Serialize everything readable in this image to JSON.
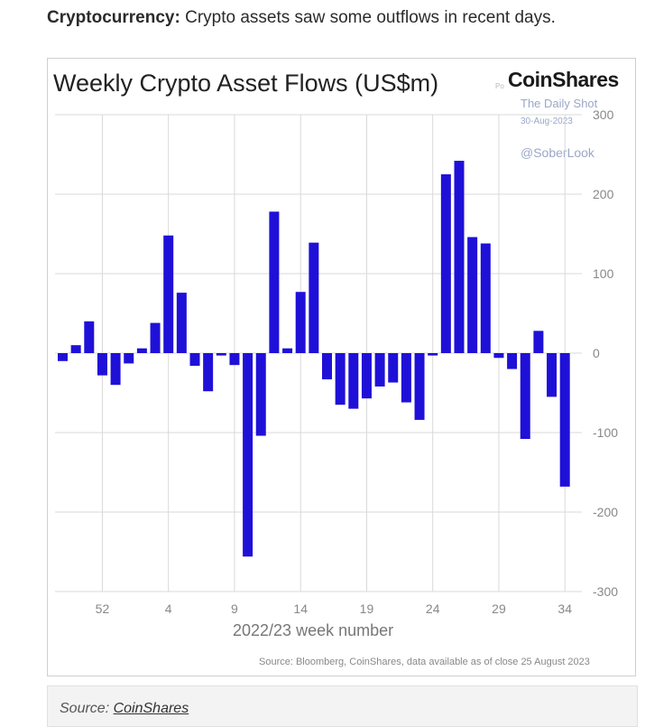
{
  "intro": {
    "bold": "Cryptocurrency:",
    "text": " Crypto assets saw some outflows in recent days."
  },
  "chart": {
    "title": "Weekly Crypto Asset Flows (US$m)",
    "brand": "CoinShares",
    "brand_prefix": "Po",
    "watermark": {
      "line1": "The Daily Shot",
      "line2": "30-Aug-2023",
      "line3": "@SoberLook"
    },
    "source_note": "Source: Bloomberg, CoinShares, data available as of close 25 August 2023"
  },
  "chart_data": {
    "type": "bar",
    "title": "Weekly Crypto Asset Flows (US$m)",
    "xlabel": "2022/23 week number",
    "ylabel": "",
    "ylim": [
      -300,
      300
    ],
    "yticks": [
      300,
      200,
      100,
      0,
      -100,
      -200,
      -300
    ],
    "ytick_labels": [
      "300",
      "200",
      "100",
      "0",
      "-100",
      "-200",
      "-300"
    ],
    "x_tick_labels": [
      "52",
      "4",
      "9",
      "14",
      "19",
      "24",
      "29",
      "34"
    ],
    "x_tick_indices": [
      3,
      8,
      13,
      18,
      23,
      28,
      33,
      38
    ],
    "bar_color": "#1f10d8",
    "values": [
      -10,
      10,
      40,
      -28,
      -40,
      -13,
      6,
      38,
      148,
      76,
      -16,
      -48,
      -3,
      -15,
      -256,
      -104,
      178,
      6,
      77,
      139,
      -33,
      -65,
      -70,
      -57,
      -42,
      -37,
      -62,
      -84,
      -3,
      225,
      242,
      146,
      138,
      -6,
      -20,
      -108,
      28,
      -55,
      -168
    ],
    "grid": true,
    "legend": "none"
  },
  "footer": {
    "label": "Source: ",
    "link": "CoinShares"
  }
}
